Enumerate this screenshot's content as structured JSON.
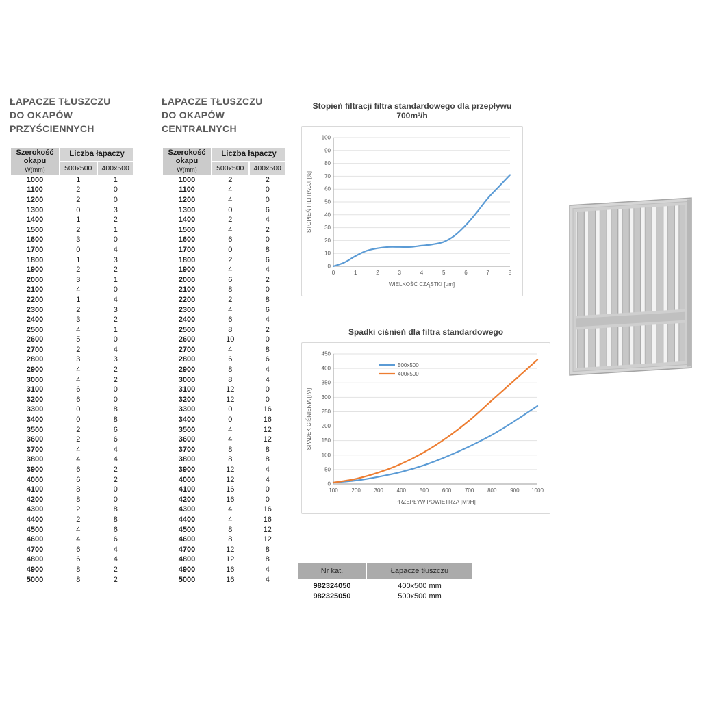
{
  "tables": [
    {
      "title_lines": [
        "ŁAPACZE TŁUSZCZU",
        "DO OKAPÓW",
        "PRZYŚCIENNYCH"
      ],
      "header": {
        "col1": "Szerokość okapu",
        "col1_sub": "W(mm)",
        "group": "Liczba łapaczy",
        "sub": [
          "500x500",
          "400x500"
        ]
      },
      "rows": [
        [
          "1000",
          "1",
          "1"
        ],
        [
          "1100",
          "2",
          "0"
        ],
        [
          "1200",
          "2",
          "0"
        ],
        [
          "1300",
          "0",
          "3"
        ],
        [
          "1400",
          "1",
          "2"
        ],
        [
          "1500",
          "2",
          "1"
        ],
        [
          "1600",
          "3",
          "0"
        ],
        [
          "1700",
          "0",
          "4"
        ],
        [
          "1800",
          "1",
          "3"
        ],
        [
          "1900",
          "2",
          "2"
        ],
        [
          "2000",
          "3",
          "1"
        ],
        [
          "2100",
          "4",
          "0"
        ],
        [
          "2200",
          "1",
          "4"
        ],
        [
          "2300",
          "2",
          "3"
        ],
        [
          "2400",
          "3",
          "2"
        ],
        [
          "2500",
          "4",
          "1"
        ],
        [
          "2600",
          "5",
          "0"
        ],
        [
          "2700",
          "2",
          "4"
        ],
        [
          "2800",
          "3",
          "3"
        ],
        [
          "2900",
          "4",
          "2"
        ],
        [
          "3000",
          "4",
          "2"
        ],
        [
          "3100",
          "6",
          "0"
        ],
        [
          "3200",
          "6",
          "0"
        ],
        [
          "3300",
          "0",
          "8"
        ],
        [
          "3400",
          "0",
          "8"
        ],
        [
          "3500",
          "2",
          "6"
        ],
        [
          "3600",
          "2",
          "6"
        ],
        [
          "3700",
          "4",
          "4"
        ],
        [
          "3800",
          "4",
          "4"
        ],
        [
          "3900",
          "6",
          "2"
        ],
        [
          "4000",
          "6",
          "2"
        ],
        [
          "4100",
          "8",
          "0"
        ],
        [
          "4200",
          "8",
          "0"
        ],
        [
          "4300",
          "2",
          "8"
        ],
        [
          "4400",
          "2",
          "8"
        ],
        [
          "4500",
          "4",
          "6"
        ],
        [
          "4600",
          "4",
          "6"
        ],
        [
          "4700",
          "6",
          "4"
        ],
        [
          "4800",
          "6",
          "4"
        ],
        [
          "4900",
          "8",
          "2"
        ],
        [
          "5000",
          "8",
          "2"
        ]
      ]
    },
    {
      "title_lines": [
        "ŁAPACZE TŁUSZCZU",
        "DO OKAPÓW",
        "CENTRALNYCH"
      ],
      "header": {
        "col1": "Szerokość okapu",
        "col1_sub": "W(mm)",
        "group": "Liczba łapaczy",
        "sub": [
          "500x500",
          "400x500"
        ]
      },
      "rows": [
        [
          "1000",
          "2",
          "2"
        ],
        [
          "1100",
          "4",
          "0"
        ],
        [
          "1200",
          "4",
          "0"
        ],
        [
          "1300",
          "0",
          "6"
        ],
        [
          "1400",
          "2",
          "4"
        ],
        [
          "1500",
          "4",
          "2"
        ],
        [
          "1600",
          "6",
          "0"
        ],
        [
          "1700",
          "0",
          "8"
        ],
        [
          "1800",
          "2",
          "6"
        ],
        [
          "1900",
          "4",
          "4"
        ],
        [
          "2000",
          "6",
          "2"
        ],
        [
          "2100",
          "8",
          "0"
        ],
        [
          "2200",
          "2",
          "8"
        ],
        [
          "2300",
          "4",
          "6"
        ],
        [
          "2400",
          "6",
          "4"
        ],
        [
          "2500",
          "8",
          "2"
        ],
        [
          "2600",
          "10",
          "0"
        ],
        [
          "2700",
          "4",
          "8"
        ],
        [
          "2800",
          "6",
          "6"
        ],
        [
          "2900",
          "8",
          "4"
        ],
        [
          "3000",
          "8",
          "4"
        ],
        [
          "3100",
          "12",
          "0"
        ],
        [
          "3200",
          "12",
          "0"
        ],
        [
          "3300",
          "0",
          "16"
        ],
        [
          "3400",
          "0",
          "16"
        ],
        [
          "3500",
          "4",
          "12"
        ],
        [
          "3600",
          "4",
          "12"
        ],
        [
          "3700",
          "8",
          "8"
        ],
        [
          "3800",
          "8",
          "8"
        ],
        [
          "3900",
          "12",
          "4"
        ],
        [
          "4000",
          "12",
          "4"
        ],
        [
          "4100",
          "16",
          "0"
        ],
        [
          "4200",
          "16",
          "0"
        ],
        [
          "4300",
          "4",
          "16"
        ],
        [
          "4400",
          "4",
          "16"
        ],
        [
          "4500",
          "8",
          "12"
        ],
        [
          "4600",
          "8",
          "12"
        ],
        [
          "4700",
          "12",
          "8"
        ],
        [
          "4800",
          "12",
          "8"
        ],
        [
          "4900",
          "16",
          "4"
        ],
        [
          "5000",
          "16",
          "4"
        ]
      ]
    }
  ],
  "chart_data": [
    {
      "type": "line",
      "title": "Stopień filtracji filtra standardowego dla przepływu 700m³/h",
      "xlabel": "WIELKOŚĆ CZĄSTKI [µm]",
      "ylabel": "STOPIEŃ FILTRACJI [%]",
      "xlim": [
        0,
        8
      ],
      "ylim": [
        0,
        100
      ],
      "xticks": [
        0,
        1,
        2,
        3,
        4,
        5,
        6,
        7,
        8
      ],
      "yticks": [
        0,
        10,
        20,
        30,
        40,
        50,
        60,
        70,
        80,
        90,
        100
      ],
      "grid": true,
      "legend": false,
      "series": [
        {
          "name": "stopień filtracji",
          "color": "#5b9bd5",
          "x": [
            0,
            0.5,
            1,
            1.5,
            2,
            2.5,
            3,
            3.5,
            4,
            4.5,
            5,
            5.5,
            6,
            6.5,
            7,
            7.5,
            8
          ],
          "y": [
            0,
            3,
            8,
            12,
            14,
            15,
            15,
            15,
            16,
            17,
            19,
            24,
            32,
            42,
            53,
            62,
            71
          ]
        }
      ]
    },
    {
      "type": "line",
      "title": "Spadki ciśnień dla filtra standardowego",
      "xlabel": "PRZEPŁYW POWIETRZA [M³/H]",
      "ylabel": "SPADEK CIŚNIENIA [PA]",
      "xlim": [
        100,
        1000
      ],
      "ylim": [
        0,
        450
      ],
      "xticks": [
        100,
        200,
        300,
        400,
        500,
        600,
        700,
        800,
        900,
        1000
      ],
      "yticks": [
        0,
        50,
        100,
        150,
        200,
        250,
        300,
        350,
        400,
        450
      ],
      "grid": true,
      "legend": true,
      "series": [
        {
          "name": "500x500",
          "color": "#5b9bd5",
          "x": [
            100,
            200,
            300,
            400,
            500,
            600,
            700,
            800,
            900,
            1000
          ],
          "y": [
            5,
            12,
            25,
            42,
            65,
            95,
            130,
            170,
            218,
            270
          ]
        },
        {
          "name": "400x500",
          "color": "#ed7d31",
          "x": [
            100,
            200,
            300,
            400,
            500,
            600,
            700,
            800,
            900,
            1000
          ],
          "y": [
            5,
            18,
            40,
            70,
            110,
            160,
            220,
            290,
            360,
            430
          ]
        }
      ]
    }
  ],
  "catalog": {
    "headers": [
      "Nr kat.",
      "Łapacze tłuszczu"
    ],
    "rows": [
      [
        "982324050",
        "400x500 mm"
      ],
      [
        "982325050",
        "500x500 mm"
      ]
    ]
  },
  "colors": {
    "series_500x500": "#5b9bd5",
    "series_400x500": "#ed7d31",
    "header_gray": "#d4d4d4",
    "title_gray": "#595959"
  }
}
